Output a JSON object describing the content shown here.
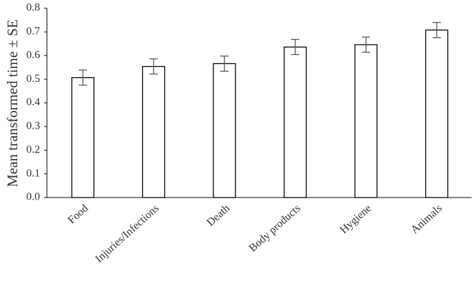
{
  "chart_data": {
    "type": "bar",
    "y_label": "Mean transformed time ± SE",
    "categories": [
      "Food",
      "Injuries/Infections",
      "Death",
      "Body products",
      "Hygiene",
      "Animals"
    ],
    "values": [
      0.507,
      0.554,
      0.566,
      0.636,
      0.646,
      0.708
    ],
    "errors": [
      0.032,
      0.032,
      0.032,
      0.032,
      0.032,
      0.032
    ],
    "color": "#ffffff",
    "ylim": [
      0,
      0.8
    ],
    "yticks": [
      {
        "value": 0,
        "label": "0.0"
      },
      {
        "value": 0.1,
        "label": "0.1"
      },
      {
        "value": 0.2,
        "label": "0.2"
      },
      {
        "value": 0.3,
        "label": "0.3"
      },
      {
        "value": 0.4,
        "label": "0.4"
      },
      {
        "value": 0.5,
        "label": "0.5"
      },
      {
        "value": 0.6,
        "label": "0.6"
      },
      {
        "value": 0.7,
        "label": "0.7"
      },
      {
        "value": 0.8,
        "label": "0.8"
      }
    ],
    "grid": false
  }
}
